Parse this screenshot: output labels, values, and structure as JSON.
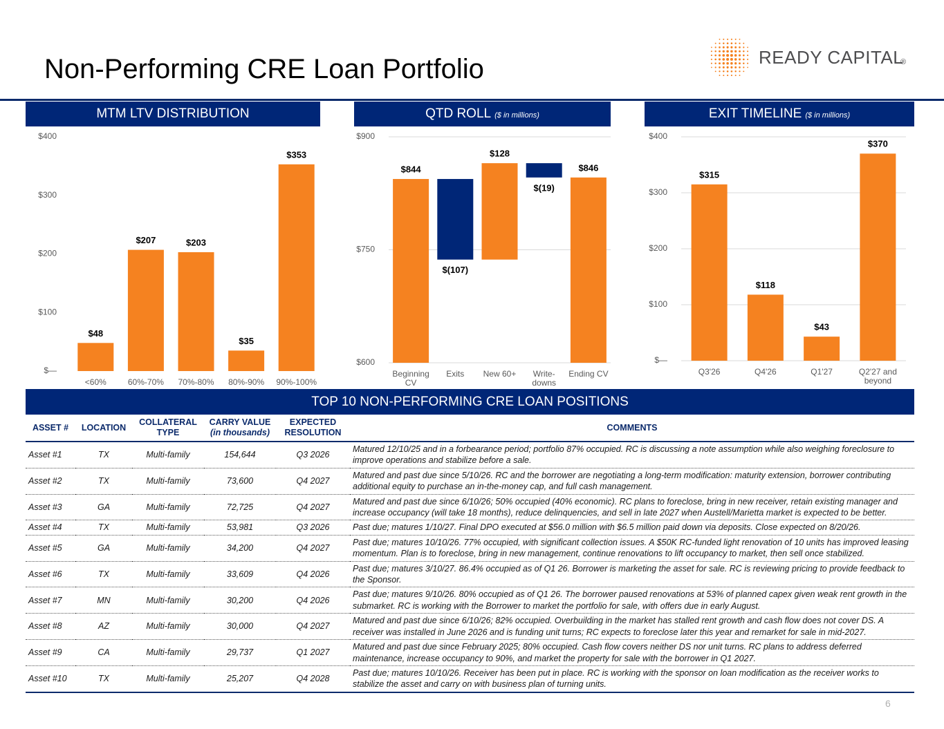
{
  "header": {
    "title": "Non-Performing CRE Loan Portfolio",
    "logo": {
      "name": "READY CAPITAL",
      "mark": "®"
    }
  },
  "chart_data": [
    {
      "type": "bar",
      "title": "MTM LTV DISTRIBUTION",
      "categories": [
        "<60%",
        "60%-70%",
        "70%-80%",
        "80%-90%",
        "90%-100%"
      ],
      "values": [
        48,
        207,
        203,
        35,
        353
      ],
      "value_labels": [
        "$48",
        "$207",
        "$203",
        "$35",
        "$353"
      ],
      "color": "#f58220",
      "ylim": [
        0,
        400
      ],
      "yticks": [
        {
          "value": 0,
          "label": "$—"
        },
        {
          "value": 100,
          "label": "$100"
        },
        {
          "value": 200,
          "label": "$200"
        },
        {
          "value": 300,
          "label": "$300"
        },
        {
          "value": 400,
          "label": "$400"
        }
      ],
      "grid": false
    },
    {
      "type": "waterfall",
      "title": "QTD ROLL",
      "subtitle": "($ in millions)",
      "categories": [
        "Beginning CV",
        "Exits",
        "New 60+",
        "Write-downs",
        "Ending CV"
      ],
      "values": [
        844,
        -107,
        128,
        -19,
        846
      ],
      "value_labels": [
        "$844",
        "$(107)",
        "$128",
        "$(19)",
        "$846"
      ],
      "color": "#f58220",
      "negative_color": "#002677",
      "ylim": [
        600,
        900
      ],
      "yticks": [
        {
          "value": 600,
          "label": "$600"
        },
        {
          "value": 750,
          "label": "$750"
        },
        {
          "value": 900,
          "label": "$900"
        }
      ],
      "grid": true
    },
    {
      "type": "bar",
      "title": "EXIT TIMELINE",
      "subtitle": "($ in millions)",
      "categories": [
        "Q3'26",
        "Q4'26",
        "Q1'27",
        "Q2'27 and beyond"
      ],
      "values": [
        315,
        118,
        43,
        370
      ],
      "value_labels": [
        "$315",
        "$118",
        "$43",
        "$370"
      ],
      "color": "#f58220",
      "ylim": [
        0,
        400
      ],
      "yticks": [
        {
          "value": 0,
          "label": "$—"
        },
        {
          "value": 100,
          "label": "$100"
        },
        {
          "value": 200,
          "label": "$200"
        },
        {
          "value": 300,
          "label": "$300"
        },
        {
          "value": 400,
          "label": "$400"
        }
      ],
      "grid": true
    }
  ],
  "table": {
    "title": "TOP 10 NON-PERFORMING CRE LOAN POSITIONS",
    "columns": [
      {
        "label": "ASSET #"
      },
      {
        "label": "LOCATION"
      },
      {
        "label": "COLLATERAL TYPE"
      },
      {
        "label": "CARRY VALUE",
        "note": "(in thousands)"
      },
      {
        "label": "EXPECTED RESOLUTION"
      },
      {
        "label": "COMMENTS"
      }
    ],
    "rows": [
      [
        "Asset #1",
        "TX",
        "Multi-family",
        "154,644",
        "Q3 2026",
        "Matured 12/10/25 and in a forbearance period; portfolio 87% occupied. RC is discussing a note assumption while also weighing foreclosure to improve operations and stabilize before a sale."
      ],
      [
        "Asset #2",
        "TX",
        "Multi-family",
        "73,600",
        "Q4 2027",
        "Matured and past due since 5/10/26. RC and the borrower are negotiating a long-term modification: maturity extension, borrower contributing additional equity to purchase an in-the-money cap, and full cash management."
      ],
      [
        "Asset #3",
        "GA",
        "Multi-family",
        "72,725",
        "Q4 2027",
        "Matured and past due since 6/10/26; 50% occupied (40% economic). RC plans to foreclose, bring in new receiver, retain existing manager and increase occupancy (will take 18 months), reduce delinquencies, and sell in late 2027 when Austell/Marietta market is expected to be better."
      ],
      [
        "Asset #4",
        "TX",
        "Multi-family",
        "53,981",
        "Q3 2026",
        "Past due; matures 1/10/27. Final DPO executed at $56.0 million with $6.5 million paid down via deposits. Close expected on 8/20/26."
      ],
      [
        "Asset #5",
        "GA",
        "Multi-family",
        "34,200",
        "Q4 2027",
        "Past due; matures 10/10/26. 77% occupied, with significant collection issues. A $50K RC-funded light renovation of 10 units has improved leasing momentum. Plan is to foreclose, bring in new management, continue renovations to lift occupancy to market, then sell once stabilized."
      ],
      [
        "Asset #6",
        "TX",
        "Multi-family",
        "33,609",
        "Q4 2026",
        "Past due; matures 3/10/27. 86.4% occupied as of Q1 26. Borrower is marketing the asset for sale. RC is reviewing pricing to provide feedback to the Sponsor."
      ],
      [
        "Asset #7",
        "MN",
        "Multi-family",
        "30,200",
        "Q4 2026",
        "Past due; matures 9/10/26. 80% occupied as of Q1 26. The borrower paused renovations at 53% of planned capex given weak rent growth in the submarket. RC is working with the Borrower to market the portfolio for sale, with offers due in early August."
      ],
      [
        "Asset #8",
        "AZ",
        "Multi-family",
        "30,000",
        "Q4 2027",
        "Matured and past due since 6/10/26; 82% occupied. Overbuilding in the market has stalled rent growth and cash flow does not cover DS. A receiver was installed in June 2026 and is funding unit turns; RC expects to foreclose later this year and remarket for sale in mid-2027."
      ],
      [
        "Asset #9",
        "CA",
        "Multi-family",
        "29,737",
        "Q1 2027",
        "Matured and past due since February 2025; 80% occupied. Cash flow covers neither DS nor unit turns. RC plans to address deferred maintenance, increase occupancy to 90%, and market the property for sale with the borrower in Q1 2027."
      ],
      [
        "Asset #10",
        "TX",
        "Multi-family",
        "25,207",
        "Q4 2028",
        "Past due; matures 10/10/26. Receiver has been put in place. RC is working with the sponsor on loan modification as the receiver works to stabilize the asset and carry on with business plan of turning units."
      ]
    ]
  },
  "page_number": "6"
}
